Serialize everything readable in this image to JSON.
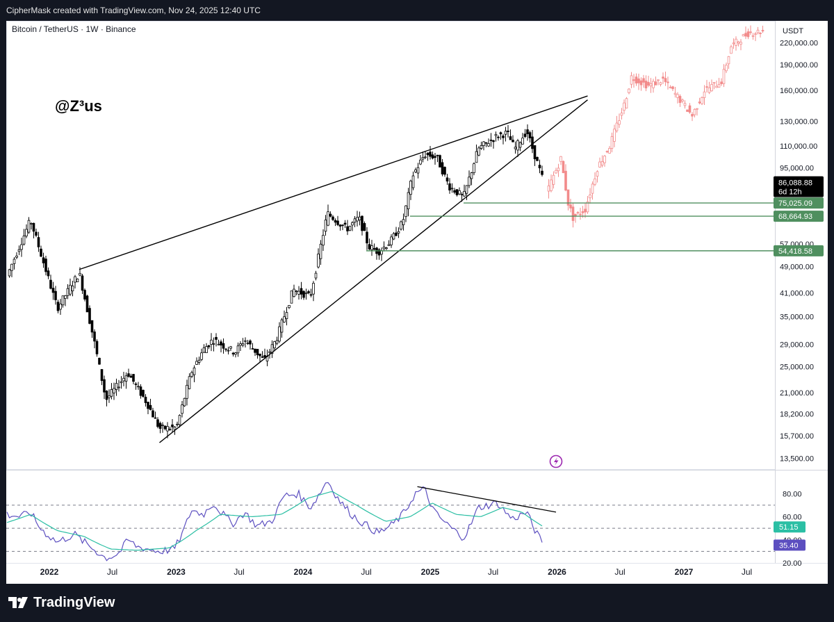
{
  "header": {
    "attribution": "CipherMask created with TradingView.com, Nov 24, 2025 12:40 UTC"
  },
  "chart": {
    "symbol_line": "Bitcoin / TetherUS · 1W · Binance",
    "watermark": "@Z³us",
    "currency": "USDT"
  },
  "footer": {
    "brand": "TradingView"
  },
  "chart_data": [
    {
      "type": "candlestick",
      "title": "Bitcoin / TetherUS · 1W · Binance",
      "y_scale": "log",
      "ylim": [
        12500,
        255000
      ],
      "xlim": [
        "2021-08-30",
        "2027-09-20"
      ],
      "y_ticks": [
        13500,
        15700,
        18200,
        21000,
        25000,
        29000,
        35000,
        41000,
        49000,
        57000,
        95000,
        110000,
        130000,
        160000,
        190000,
        220000
      ],
      "y_tick_labels": [
        "13,500.00",
        "15,700.00",
        "18,200.00",
        "21,000.00",
        "25,000.00",
        "29,000.00",
        "35,000.00",
        "41,000.00",
        "49,000.00",
        "57,000.00",
        "95,000.00",
        "110,000.00",
        "130,000.00",
        "160,000.00",
        "190,000.00",
        "220,000.00"
      ],
      "x_ticks": [
        {
          "label": "2022",
          "date": "2022-01-01"
        },
        {
          "label": "Jul",
          "date": "2022-07-01"
        },
        {
          "label": "2023",
          "date": "2023-01-01"
        },
        {
          "label": "Jul",
          "date": "2023-07-01"
        },
        {
          "label": "2024",
          "date": "2024-01-01"
        },
        {
          "label": "Jul",
          "date": "2024-07-01"
        },
        {
          "label": "2025",
          "date": "2025-01-01"
        },
        {
          "label": "Jul",
          "date": "2025-07-01"
        },
        {
          "label": "2026",
          "date": "2026-01-01"
        },
        {
          "label": "Jul",
          "date": "2026-07-01"
        },
        {
          "label": "2027",
          "date": "2027-01-01"
        },
        {
          "label": "Jul",
          "date": "2027-07-01"
        }
      ],
      "price_path": [
        [
          "2021-09-01",
          46000
        ],
        [
          "2021-11-08",
          67000
        ],
        [
          "2022-01-24",
          37000
        ],
        [
          "2022-03-28",
          47000
        ],
        [
          "2022-05-09",
          30000
        ],
        [
          "2022-06-13",
          20000
        ],
        [
          "2022-08-15",
          24000
        ],
        [
          "2022-10-10",
          19500
        ],
        [
          "2022-11-14",
          16500
        ],
        [
          "2023-01-02",
          16600
        ],
        [
          "2023-02-13",
          24000
        ],
        [
          "2023-03-20",
          28000
        ],
        [
          "2023-04-17",
          30000
        ],
        [
          "2023-06-19",
          27500
        ],
        [
          "2023-07-17",
          30000
        ],
        [
          "2023-09-11",
          26000
        ],
        [
          "2023-10-16",
          30000
        ],
        [
          "2023-12-04",
          42000
        ],
        [
          "2024-01-22",
          40000
        ],
        [
          "2024-03-11",
          70000
        ],
        [
          "2024-05-06",
          63000
        ],
        [
          "2024-06-10",
          68000
        ],
        [
          "2024-07-08",
          56000
        ],
        [
          "2024-08-05",
          54000
        ],
        [
          "2024-09-09",
          58000
        ],
        [
          "2024-10-14",
          66000
        ],
        [
          "2024-11-11",
          90000
        ],
        [
          "2024-12-16",
          104000
        ],
        [
          "2025-01-20",
          102000
        ],
        [
          "2025-02-24",
          84000
        ],
        [
          "2025-04-07",
          78000
        ],
        [
          "2025-05-19",
          108000
        ],
        [
          "2025-07-14",
          118000
        ],
        [
          "2025-08-11",
          120000
        ],
        [
          "2025-09-01",
          108000
        ],
        [
          "2025-10-06",
          122000
        ],
        [
          "2025-10-20",
          110000
        ],
        [
          "2025-11-10",
          95000
        ],
        [
          "2025-11-24",
          86000
        ]
      ],
      "projection_path": [
        [
          "2025-12-01",
          80000
        ],
        [
          "2025-12-22",
          90000
        ],
        [
          "2026-01-12",
          101000
        ],
        [
          "2026-02-02",
          75000
        ],
        [
          "2026-02-16",
          68000
        ],
        [
          "2026-03-23",
          72000
        ],
        [
          "2026-04-27",
          95000
        ],
        [
          "2026-06-01",
          110000
        ],
        [
          "2026-07-13",
          145000
        ],
        [
          "2026-08-03",
          175000
        ],
        [
          "2026-09-21",
          165000
        ],
        [
          "2026-11-02",
          172000
        ],
        [
          "2026-12-21",
          150000
        ],
        [
          "2027-01-25",
          135000
        ],
        [
          "2027-03-01",
          160000
        ],
        [
          "2027-04-19",
          170000
        ],
        [
          "2027-05-17",
          215000
        ],
        [
          "2027-07-05",
          235000
        ],
        [
          "2027-08-16",
          238000
        ]
      ],
      "trendlines": [
        {
          "from": [
            "2022-03-28",
            48000
          ],
          "to": [
            "2026-03-30",
            154000
          ]
        },
        {
          "from": [
            "2022-11-14",
            15000
          ],
          "to": [
            "2026-03-30",
            150000
          ]
        }
      ],
      "horizontal_levels": [
        {
          "value": 75025.09,
          "label": "75,025.09"
        },
        {
          "value": 68664.93,
          "label": "68,664.93"
        },
        {
          "value": 54418.58,
          "label": "54,418.58"
        }
      ],
      "last_price": {
        "value": 86088.88,
        "label": "86,088.88",
        "countdown": "6d 12h"
      },
      "colors": {
        "up": "#26a69a",
        "down": "#ef5350",
        "historical": "#000000",
        "projection": "#f28b8b",
        "levels": "#4f8f5f",
        "lines": "#000000",
        "icon": "#9c27b0"
      }
    },
    {
      "type": "line",
      "title": "",
      "ylim": [
        20,
        100
      ],
      "y_ticks": [
        20,
        40,
        60,
        80
      ],
      "y_tick_labels": [
        "20.00",
        "40.00",
        "60.00",
        "80.00"
      ],
      "dashed_levels": [
        70,
        50,
        30
      ],
      "series": [
        {
          "values": [
            [
              "2021-09-01",
              62
            ],
            [
              "2021-10-11",
              60
            ],
            [
              "2021-11-08",
              64
            ],
            [
              "2021-12-06",
              50
            ],
            [
              "2022-01-24",
              38
            ],
            [
              "2022-03-14",
              45
            ],
            [
              "2022-04-11",
              38
            ],
            [
              "2022-05-09",
              32
            ],
            [
              "2022-06-13",
              24
            ],
            [
              "2022-07-18",
              28
            ],
            [
              "2022-08-15",
              40
            ],
            [
              "2022-09-12",
              34
            ],
            [
              "2022-11-14",
              30
            ],
            [
              "2022-12-26",
              32
            ],
            [
              "2023-02-13",
              66
            ],
            [
              "2023-03-20",
              62
            ],
            [
              "2023-04-17",
              72
            ],
            [
              "2023-06-12",
              54
            ],
            [
              "2023-07-17",
              64
            ],
            [
              "2023-08-21",
              52
            ],
            [
              "2023-10-02",
              56
            ],
            [
              "2023-11-06",
              78
            ],
            [
              "2023-12-18",
              80
            ],
            [
              "2024-01-22",
              68
            ],
            [
              "2024-03-11",
              92
            ],
            [
              "2024-04-15",
              74
            ],
            [
              "2024-05-20",
              62
            ],
            [
              "2024-06-24",
              54
            ],
            [
              "2024-08-05",
              46
            ],
            [
              "2024-09-09",
              52
            ],
            [
              "2024-10-14",
              62
            ],
            [
              "2024-11-18",
              80
            ],
            [
              "2024-12-16",
              84
            ],
            [
              "2025-01-13",
              64
            ],
            [
              "2025-02-24",
              52
            ],
            [
              "2025-04-07",
              42
            ],
            [
              "2025-05-19",
              68
            ],
            [
              "2025-07-14",
              72
            ],
            [
              "2025-08-25",
              58
            ],
            [
              "2025-10-06",
              64
            ],
            [
              "2025-11-03",
              46
            ],
            [
              "2025-11-24",
              35.4
            ]
          ],
          "color": "#5c4fc0",
          "last": 35.4,
          "last_label": "35.40"
        },
        {
          "values": [
            [
              "2021-09-01",
              55
            ],
            [
              "2021-11-08",
              62
            ],
            [
              "2022-01-24",
              48
            ],
            [
              "2022-04-11",
              43
            ],
            [
              "2022-06-27",
              32
            ],
            [
              "2022-09-12",
              31
            ],
            [
              "2022-12-12",
              33
            ],
            [
              "2023-02-27",
              48
            ],
            [
              "2023-05-08",
              62
            ],
            [
              "2023-08-07",
              60
            ],
            [
              "2023-10-30",
              62
            ],
            [
              "2024-01-15",
              76
            ],
            [
              "2024-03-25",
              82
            ],
            [
              "2024-06-03",
              70
            ],
            [
              "2024-08-26",
              56
            ],
            [
              "2024-11-04",
              60
            ],
            [
              "2025-01-06",
              72
            ],
            [
              "2025-03-17",
              62
            ],
            [
              "2025-05-26",
              60
            ],
            [
              "2025-07-28",
              68
            ],
            [
              "2025-09-22",
              64
            ],
            [
              "2025-11-24",
              51.15
            ]
          ],
          "color": "#2bbfa4",
          "last": 51.15,
          "last_label": "51.15"
        }
      ],
      "trendline": {
        "from": [
          "2024-11-25",
          86
        ],
        "to": [
          "2025-12-29",
          64
        ]
      }
    }
  ]
}
